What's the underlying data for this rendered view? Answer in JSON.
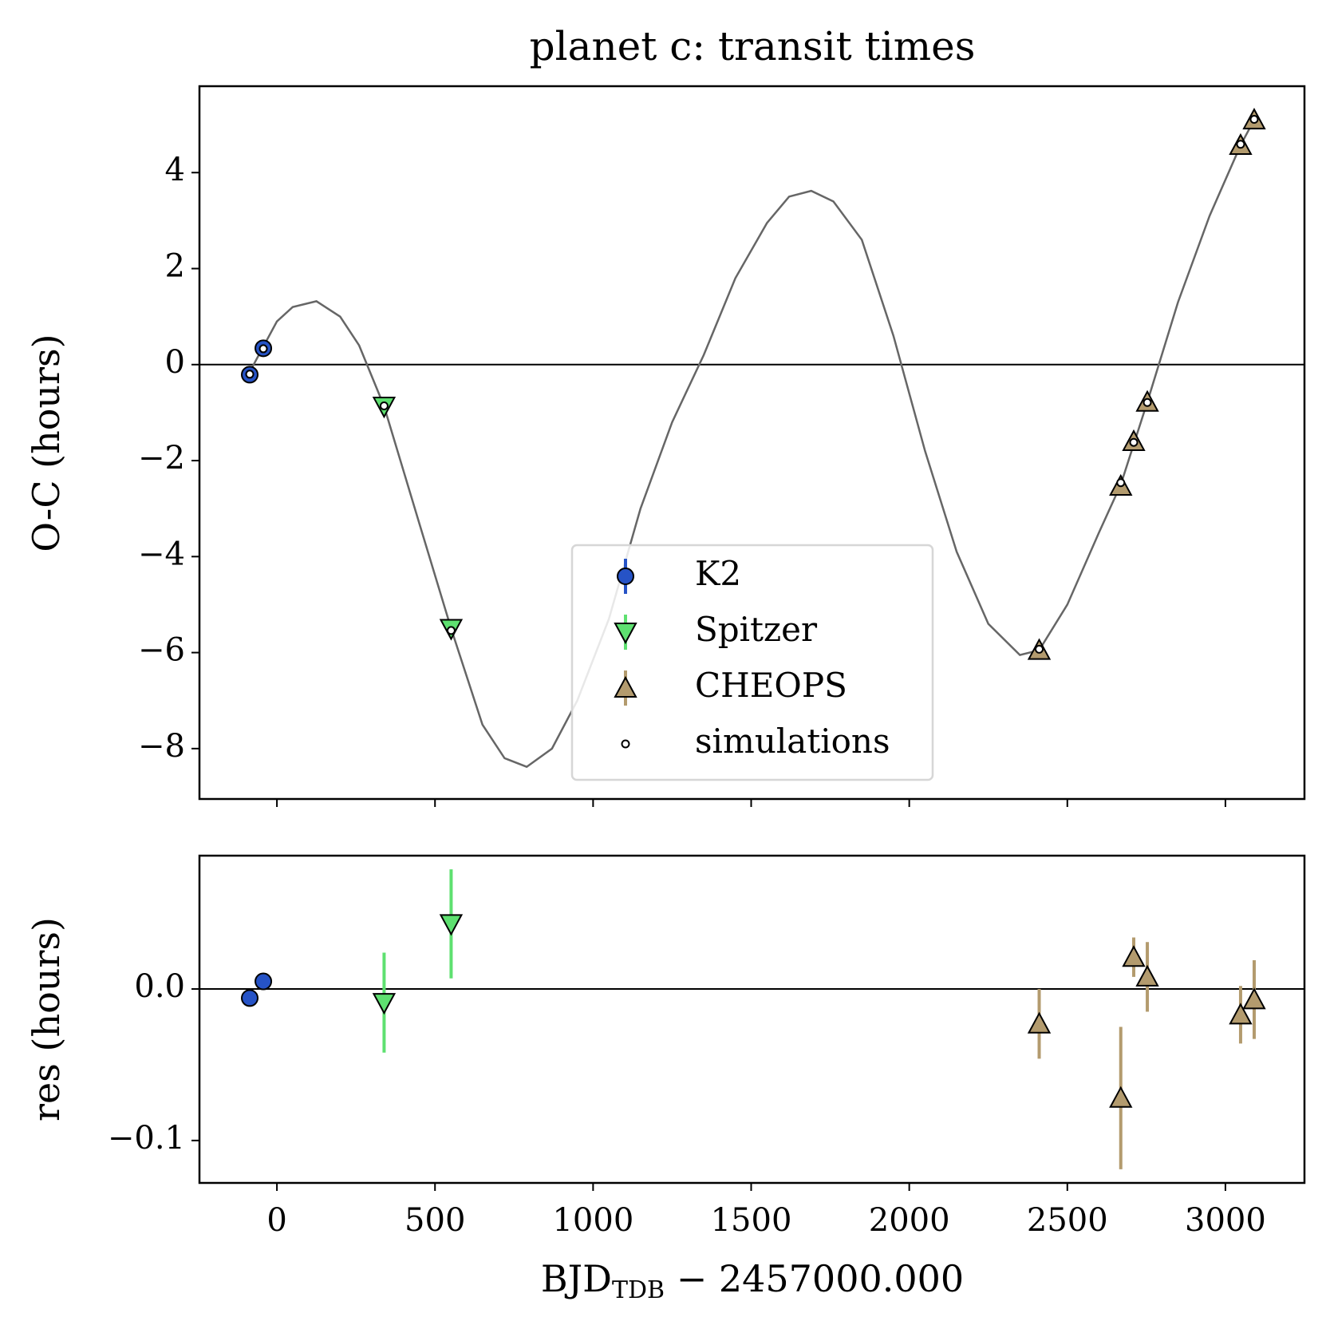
{
  "chart_data": [
    {
      "type": "scatter",
      "title": "planet c: transit times",
      "ylabel": "O-C (hours)",
      "xlim": [
        -245,
        3250
      ],
      "xticks": [
        0,
        500,
        1000,
        1500,
        2000,
        2500,
        3000
      ],
      "ylim": [
        -9.05,
        5.8
      ],
      "yticks": [
        {
          "value": -8,
          "label": "−8"
        },
        {
          "value": -6,
          "label": "−6"
        },
        {
          "value": -4,
          "label": "−4"
        },
        {
          "value": -2,
          "label": "−2"
        },
        0,
        2,
        4
      ],
      "series": [
        {
          "kind": "line",
          "color": "#666666",
          "x": [
            -90,
            0,
            50,
            125,
            200,
            260,
            339,
            450,
            551,
            650,
            720,
            790,
            870,
            950,
            1050,
            1150,
            1250,
            1350,
            1450,
            1550,
            1620,
            1690,
            1760,
            1850,
            1950,
            2050,
            2150,
            2250,
            2350,
            2411,
            2500,
            2600,
            2669,
            2753,
            2850,
            2950,
            3048,
            3091
          ],
          "values": [
            -0.2,
            0.9,
            1.2,
            1.32,
            1.0,
            0.4,
            -0.87,
            -3.3,
            -5.5,
            -7.5,
            -8.2,
            -8.38,
            -8.0,
            -7.0,
            -5.3,
            -3.0,
            -1.2,
            0.2,
            1.8,
            2.95,
            3.5,
            3.62,
            3.4,
            2.6,
            0.6,
            -1.8,
            -3.9,
            -5.4,
            -6.05,
            -5.95,
            -5.0,
            -3.5,
            -2.5,
            -0.78,
            1.3,
            3.1,
            4.57,
            5.1
          ]
        },
        {
          "name": "K2",
          "kind": "circle",
          "color": "#2653c6",
          "x": [
            -86,
            -43
          ],
          "values": [
            -0.21,
            0.34
          ]
        },
        {
          "name": "Spitzer",
          "kind": "tri-down",
          "color": "#5ee070",
          "x": [
            339,
            551
          ],
          "values": [
            -0.87,
            -5.5
          ]
        },
        {
          "name": "CHEOPS",
          "kind": "tri-up",
          "color": "#b39b6e",
          "x": [
            2411,
            2669,
            2710,
            2753,
            3048,
            3091
          ],
          "values": [
            -5.95,
            -2.53,
            -1.6,
            -0.78,
            4.57,
            5.1
          ]
        },
        {
          "name": "simulations",
          "kind": "sim",
          "color": "#000000",
          "x": [
            -86,
            -43,
            339,
            551,
            2411,
            2669,
            2710,
            2753,
            3048,
            3091
          ],
          "values": [
            -0.2,
            0.33,
            -0.86,
            -5.54,
            -5.93,
            -2.46,
            -1.62,
            -0.79,
            4.59,
            5.11
          ]
        }
      ]
    },
    {
      "type": "scatter",
      "ylabel": "res (hours)",
      "xlabel": "BJD",
      "xlabel_sub": "TDB",
      "xlabel_rest": " − 2457000.000",
      "xlim": [
        -245,
        3250
      ],
      "xticks": [
        0,
        500,
        1000,
        1500,
        2000,
        2500,
        3000
      ],
      "ylim": [
        -0.128,
        0.088
      ],
      "yticks": [
        {
          "value": -0.1,
          "label": "−0.1"
        },
        {
          "value": 0,
          "label": "0.0"
        }
      ],
      "series": [
        {
          "kind": "circle",
          "color": "#2653c6",
          "x": [
            -86,
            -43
          ],
          "values": [
            -0.006,
            0.005
          ],
          "errors": [
            0.002,
            0.002
          ]
        },
        {
          "kind": "tri-down",
          "color": "#5ee070",
          "x": [
            339,
            551
          ],
          "values": [
            -0.009,
            0.043
          ],
          "errors": [
            0.033,
            0.036
          ]
        },
        {
          "kind": "tri-up",
          "color": "#b39b6e",
          "x": [
            2411,
            2669,
            2710,
            2753,
            3048,
            3091
          ],
          "values": [
            -0.023,
            -0.072,
            0.021,
            0.008,
            -0.017,
            -0.007
          ],
          "errors": [
            0.023,
            0.047,
            0.013,
            0.023,
            0.019,
            0.026
          ]
        }
      ]
    }
  ]
}
